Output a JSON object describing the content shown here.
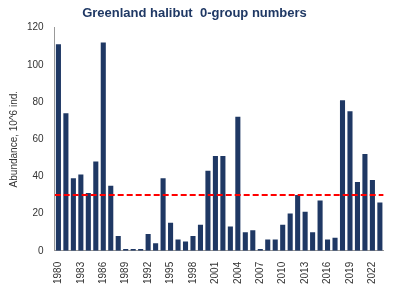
{
  "chart_data": {
    "type": "bar",
    "title": "Greenland halibut  0-group numbers",
    "y_label": "Abundance, 10^6 ind.",
    "categories": [
      "1980",
      null,
      null,
      "1983",
      null,
      null,
      "1986",
      null,
      null,
      "1989",
      null,
      null,
      "1992",
      null,
      null,
      "1995",
      null,
      null,
      "1998",
      null,
      null,
      "2001",
      null,
      null,
      "2004",
      null,
      null,
      "2007",
      null,
      null,
      "2010",
      null,
      null,
      "2013",
      null,
      null,
      "2016",
      null,
      null,
      "2019",
      null,
      null,
      "2022",
      null
    ],
    "values": [
      111,
      74,
      39,
      41,
      31,
      48,
      112,
      35,
      8,
      1,
      1,
      1,
      9,
      4,
      39,
      15,
      6,
      5,
      8,
      14,
      43,
      51,
      51,
      13,
      72,
      10,
      11,
      1,
      6,
      6,
      14,
      20,
      30,
      21,
      10,
      27,
      6,
      7,
      81,
      75,
      37,
      52,
      38,
      26
    ],
    "color": "#1f3864",
    "threshold": {
      "value": 30,
      "color": "#ff0000",
      "line_style": "dashed"
    },
    "ylim": [
      0,
      120
    ],
    "yticks": [
      0,
      20,
      40,
      60,
      80,
      100,
      120
    ],
    "grid": false
  }
}
